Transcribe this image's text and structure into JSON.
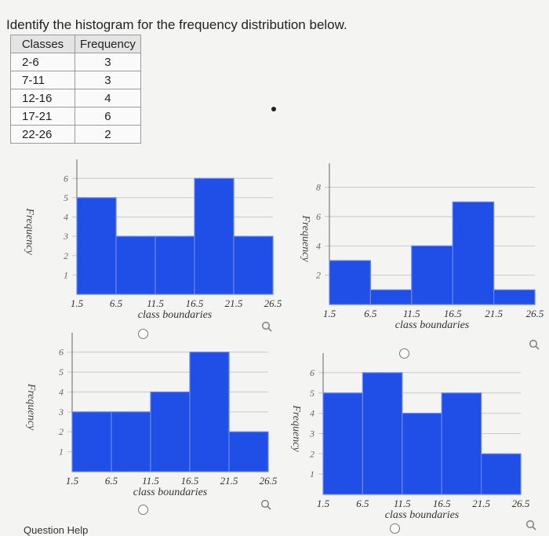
{
  "question": {
    "prompt": "Identify the histogram for the frequency distribution below.",
    "table": {
      "headers": [
        "Classes",
        "Frequency"
      ],
      "rows": [
        [
          "2-6",
          "3"
        ],
        [
          "7-11",
          "3"
        ],
        [
          "12-16",
          "4"
        ],
        [
          "17-21",
          "6"
        ],
        [
          "22-26",
          "2"
        ]
      ]
    }
  },
  "footer": {
    "help_label": "Question Help"
  },
  "colors": {
    "bar": "#1f4fe6",
    "bar_stroke": "#6b86ea",
    "grid": "#c8c8c8"
  },
  "chart_data": [
    {
      "type": "bar",
      "title": "",
      "xlabel": "class boundaries",
      "ylabel": "Frequency",
      "x_ticks": [
        "1.5",
        "6.5",
        "11.5",
        "16.5",
        "21.5",
        "26.5"
      ],
      "y_ticks": [
        1,
        2,
        3,
        4,
        5,
        6
      ],
      "ylim": [
        0,
        6.5
      ],
      "values": [
        5,
        3,
        3,
        6,
        3
      ]
    },
    {
      "type": "bar",
      "title": "",
      "xlabel": "class boundaries",
      "ylabel": "Frequency",
      "x_ticks": [
        "1.5",
        "6.5",
        "11.5",
        "16.5",
        "21.5",
        "26.5"
      ],
      "y_ticks": [
        2,
        4,
        6,
        8
      ],
      "ylim": [
        0,
        9
      ],
      "values": [
        3,
        1,
        4,
        7,
        1
      ]
    },
    {
      "type": "bar",
      "title": "",
      "xlabel": "class boundaries",
      "ylabel": "Frequency",
      "x_ticks": [
        "1.5",
        "6.5",
        "11.5",
        "16.5",
        "21.5",
        "26.5"
      ],
      "y_ticks": [
        1,
        2,
        3,
        4,
        5,
        6
      ],
      "ylim": [
        0,
        6.5
      ],
      "values": [
        3,
        3,
        4,
        6,
        2
      ]
    },
    {
      "type": "bar",
      "title": "",
      "xlabel": "class boundaries",
      "ylabel": "Frequency",
      "x_ticks": [
        "1.5",
        "6.5",
        "11.5",
        "16.5",
        "21.5",
        "26.5"
      ],
      "y_ticks": [
        1,
        2,
        3,
        4,
        5,
        6
      ],
      "ylim": [
        0,
        6.5
      ],
      "values": [
        5,
        6,
        4,
        5,
        2
      ]
    }
  ]
}
